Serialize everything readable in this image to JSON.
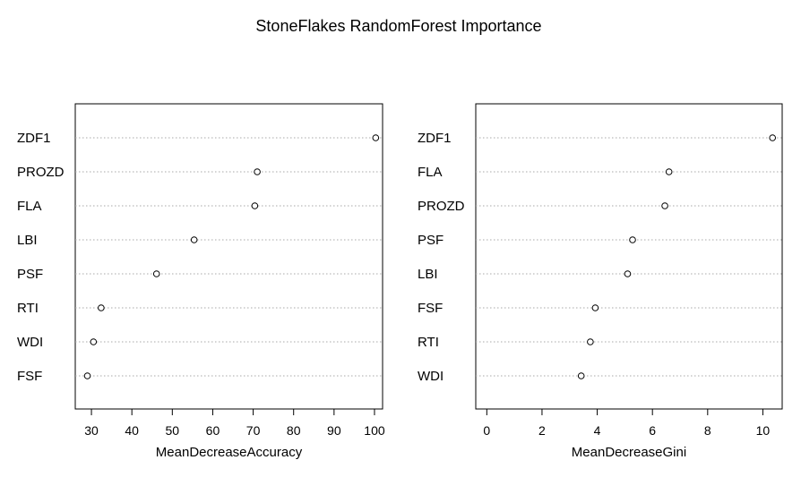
{
  "title": "StoneFlakes RandomForest Importance",
  "chart_data": [
    {
      "type": "scatter",
      "xlabel": "MeanDecreaseAccuracy",
      "xlim": [
        26,
        102
      ],
      "xticks": [
        30,
        40,
        50,
        60,
        70,
        80,
        90,
        100
      ],
      "grid": "horizontal dotted",
      "labels": [
        "ZDF1",
        "PROZD",
        "FLA",
        "LBI",
        "PSF",
        "RTI",
        "WDI",
        "FSF"
      ],
      "values": [
        100.3,
        71.0,
        70.4,
        55.4,
        46.1,
        32.4,
        30.5,
        29.0
      ]
    },
    {
      "type": "scatter",
      "xlabel": "MeanDecreaseGini",
      "xlim": [
        -0.4,
        10.7
      ],
      "xticks": [
        0,
        2,
        4,
        6,
        8,
        10
      ],
      "grid": "horizontal dotted",
      "labels": [
        "ZDF1",
        "FLA",
        "PROZD",
        "PSF",
        "LBI",
        "FSF",
        "RTI",
        "WDI"
      ],
      "values": [
        10.35,
        6.6,
        6.45,
        5.28,
        5.1,
        3.93,
        3.75,
        3.42
      ]
    }
  ]
}
